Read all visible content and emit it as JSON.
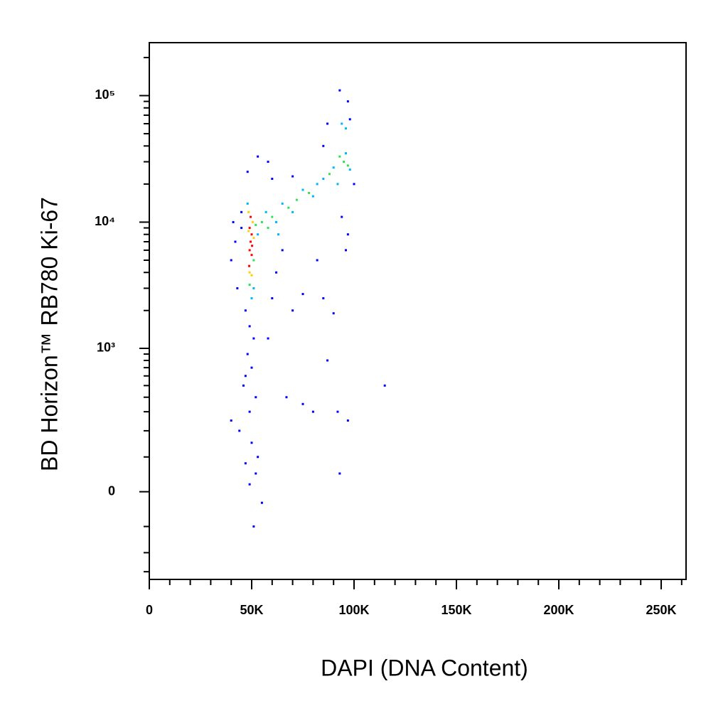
{
  "chart_data": {
    "type": "scatter",
    "xlabel": "DAPI (DNA Content)",
    "ylabel": "BD Horizon™ RB780  Ki-67",
    "xlim": [
      0,
      262144
    ],
    "xticks": [
      0,
      {
        "value": 50000,
        "label": "50K"
      },
      {
        "value": 100000,
        "label": "100K"
      },
      {
        "value": 150000,
        "label": "150K"
      },
      {
        "value": 200000,
        "label": "200K"
      },
      {
        "value": 250000,
        "label": "250K"
      }
    ],
    "xminorticks": [
      10000,
      20000,
      30000,
      40000,
      60000,
      70000,
      80000,
      90000,
      110000,
      120000,
      130000,
      140000,
      160000,
      170000,
      180000,
      190000,
      210000,
      220000,
      230000,
      240000,
      260000
    ],
    "yscale": "biexponential",
    "ylim": [
      -350,
      262144
    ],
    "yticks": [
      0,
      {
        "value": 1000,
        "label": "10³"
      },
      {
        "value": 10000,
        "label": "10⁴"
      },
      {
        "value": 100000,
        "label": "10⁵"
      }
    ],
    "yminorticks": [
      -300,
      -200,
      -100,
      100,
      200,
      300,
      400,
      500,
      600,
      700,
      800,
      900,
      2000,
      3000,
      4000,
      5000,
      6000,
      7000,
      8000,
      9000,
      20000,
      30000,
      40000,
      50000,
      60000,
      70000,
      80000,
      90000,
      200000
    ],
    "series": [
      {
        "color": "#0000ff",
        "x": [
          45000,
          42000,
          40000,
          43000,
          47000,
          49000,
          51000,
          48000,
          50000,
          46000,
          52000,
          49000,
          44000,
          50000,
          53000,
          40000,
          47000,
          52000,
          49000,
          55000,
          58000,
          60000,
          62000,
          65000,
          70000,
          75000,
          85000,
          90000,
          87000,
          80000,
          75000,
          67000,
          92000,
          97000,
          93000,
          115000,
          53000,
          58000,
          70000,
          85000,
          87000,
          93000,
          97000,
          98000,
          60000,
          82000,
          96000,
          97000,
          94000,
          100000,
          45000,
          41000,
          48000,
          47000,
          51000
        ],
        "values": [
          12000,
          7000,
          5000,
          3000,
          2000,
          1500,
          1200,
          900,
          700,
          500,
          400,
          300,
          200,
          150,
          100,
          250,
          80,
          50,
          20,
          -30,
          1200,
          2500,
          4000,
          6000,
          2000,
          2700,
          2500,
          1900,
          800,
          300,
          350,
          400,
          300,
          250,
          50,
          500,
          33000,
          30000,
          23000,
          40000,
          60000,
          110000,
          90000,
          65000,
          22000,
          5000,
          6000,
          8000,
          11000,
          20000,
          9000,
          10000,
          25000,
          600,
          -100
        ]
      },
      {
        "color": "#00b4ff",
        "x": [
          53000,
          57000,
          62000,
          65000,
          70000,
          75000,
          80000,
          85000,
          90000,
          92000,
          96000,
          98000,
          94000,
          96000,
          48000,
          51000,
          50000,
          63000,
          82000
        ],
        "values": [
          8000,
          12000,
          10000,
          14000,
          12000,
          18000,
          16000,
          22000,
          27000,
          20000,
          35000,
          26000,
          60000,
          55000,
          14000,
          3000,
          2500,
          8000,
          20000
        ]
      },
      {
        "color": "#30e050",
        "x": [
          52000,
          55000,
          60000,
          68000,
          78000,
          88000,
          95000,
          97000,
          49000,
          51000,
          93000,
          58000,
          72000
        ],
        "values": [
          9500,
          10000,
          11000,
          13000,
          17000,
          24000,
          30000,
          28000,
          3200,
          5000,
          33000,
          9000,
          15000
        ]
      },
      {
        "color": "#ffd000",
        "x": [
          48500,
          50500,
          49000,
          51000,
          48500,
          50000
        ],
        "values": [
          12000,
          10000,
          4000,
          7500,
          8500,
          3800
        ]
      },
      {
        "color": "#ff0000",
        "x": [
          49000,
          49500,
          50000,
          49000,
          50000,
          49500,
          48800,
          50200
        ],
        "values": [
          9000,
          7000,
          5500,
          6000,
          8000,
          11000,
          4500,
          6500
        ]
      }
    ]
  }
}
